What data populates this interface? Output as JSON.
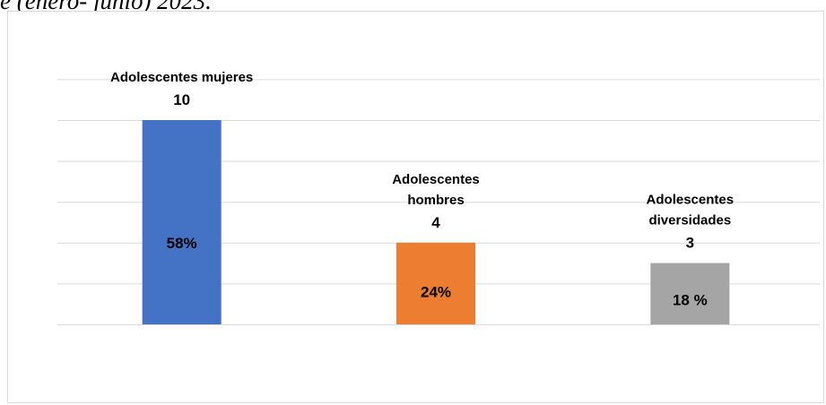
{
  "page": {
    "cut_title": "e (enero- junio) 2023."
  },
  "chart_data": {
    "type": "bar",
    "categories": [
      [
        "Adolescentes mujeres"
      ],
      [
        "Adolescentes",
        "hombres"
      ],
      [
        "Adolescentes",
        "diversidades"
      ]
    ],
    "values": [
      10,
      4,
      3
    ],
    "value_labels": [
      "10",
      "4",
      "3"
    ],
    "percent_labels": [
      "58%",
      "24%",
      "18 %"
    ],
    "colors": [
      "#4472C4",
      "#ED7D31",
      "#A5A5A5"
    ],
    "ylim": [
      0,
      10
    ],
    "grid": true,
    "legend": "none"
  }
}
